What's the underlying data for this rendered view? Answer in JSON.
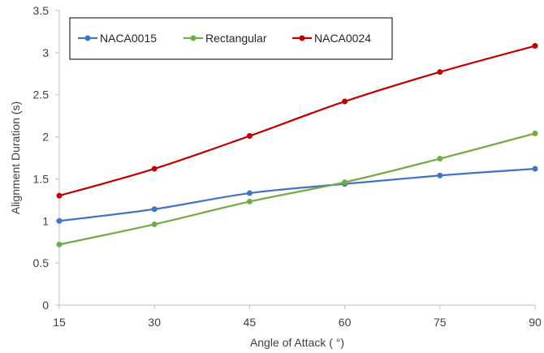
{
  "chart_data": {
    "type": "line",
    "x": [
      15,
      30,
      45,
      60,
      75,
      90
    ],
    "xlabel": "Angle of Attack ( °)",
    "ylabel": "Alignment Duration (s)",
    "xlim": [
      15,
      90
    ],
    "ylim": [
      0,
      3.5
    ],
    "yticks": [
      0,
      0.5,
      1,
      1.5,
      2,
      2.5,
      3,
      3.5
    ],
    "yticklabels": [
      "0",
      "0.5",
      "1",
      "1.5",
      "2",
      "2.5",
      "3",
      "3.5"
    ],
    "xticklabels": [
      "15",
      "30",
      "45",
      "60",
      "75",
      "90"
    ],
    "grid": false,
    "legend_position": "top-left",
    "series": [
      {
        "name": "NACA0015",
        "color": "#4472c4",
        "values": [
          1.0,
          1.14,
          1.33,
          1.44,
          1.54,
          1.62
        ]
      },
      {
        "name": "Rectangular",
        "color": "#70ad47",
        "values": [
          0.72,
          0.96,
          1.23,
          1.46,
          1.74,
          2.04
        ]
      },
      {
        "name": "NACA0024",
        "color": "#c00000",
        "values": [
          1.3,
          1.62,
          2.01,
          2.42,
          2.77,
          3.08
        ]
      }
    ]
  }
}
